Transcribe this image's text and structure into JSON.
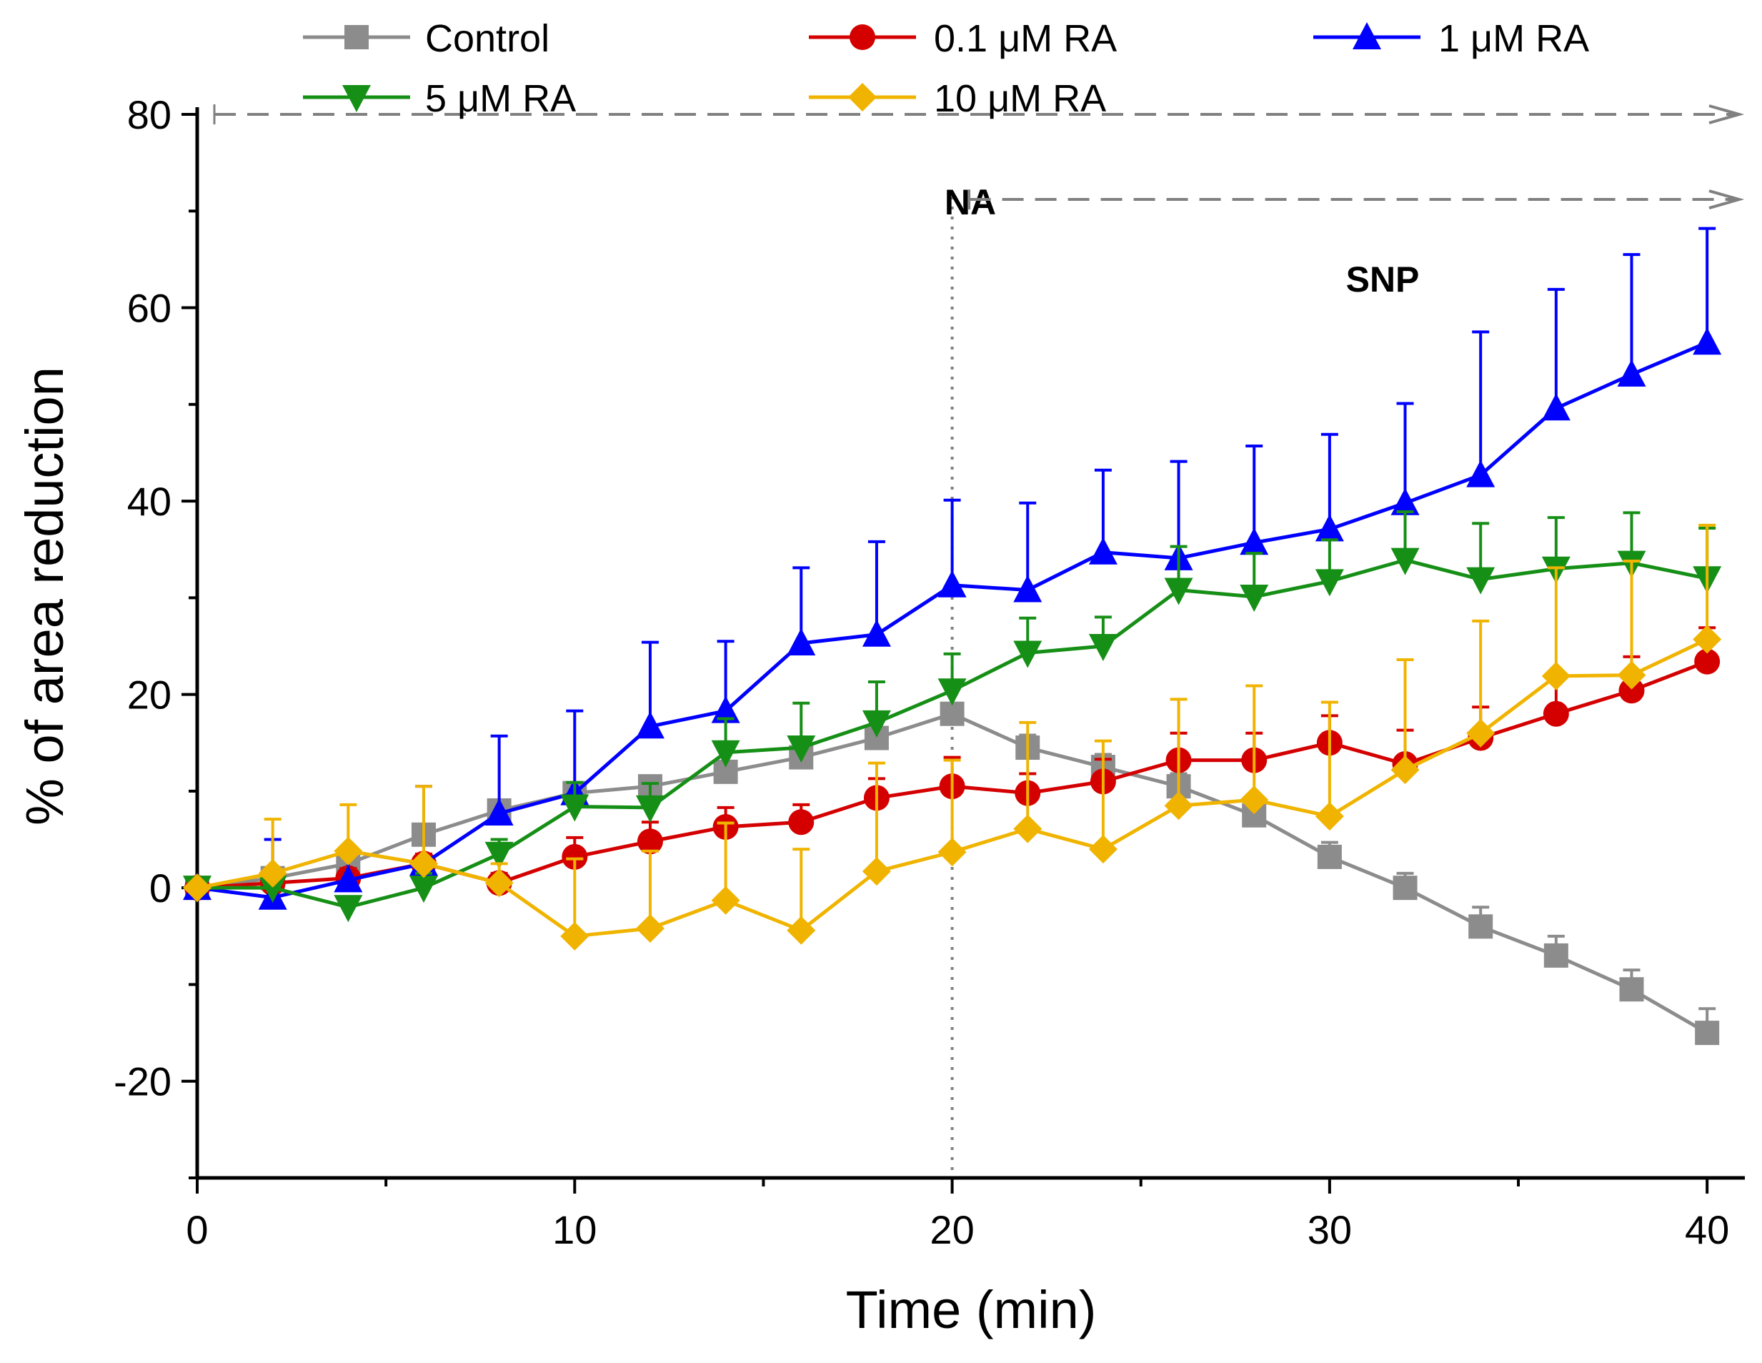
{
  "chart_data": {
    "type": "line",
    "title": "",
    "xlabel": "Time (min)",
    "ylabel": "% of area reduction",
    "xlim": [
      0,
      41
    ],
    "ylim": [
      -30,
      80
    ],
    "xticks": [
      0,
      10,
      20,
      30,
      40
    ],
    "yticks": [
      -20,
      0,
      20,
      40,
      60,
      80
    ],
    "xtick_labels": [
      "0",
      "10",
      "20",
      "30",
      "40"
    ],
    "ytick_labels": [
      "-20",
      "0",
      "20",
      "40",
      "60",
      "80"
    ],
    "grid": false,
    "legend_position": "top",
    "x": [
      0,
      2,
      4,
      6,
      8,
      10,
      12,
      14,
      16,
      18,
      20,
      22,
      24,
      26,
      28,
      30,
      32,
      34,
      36,
      38,
      40
    ],
    "series": [
      {
        "name": "Control",
        "color": "#8c8c8c",
        "marker": "square",
        "values": [
          0,
          1,
          2.5,
          5.5,
          8,
          9.8,
          10.5,
          12,
          13.5,
          15.5,
          18,
          14.5,
          12.5,
          10.5,
          7.5,
          3.2,
          0,
          -4,
          -7,
          -10.5,
          -15
        ],
        "errors": [
          0,
          1,
          1,
          1,
          1,
          1,
          1,
          1,
          1,
          1,
          1,
          1.3,
          1.3,
          1.3,
          1.3,
          1.5,
          1.5,
          2,
          2,
          2,
          2.5
        ]
      },
      {
        "name": "0.1 μM RA",
        "color": "#d40000",
        "marker": "circle",
        "values": [
          0,
          0.5,
          1,
          2.5,
          0.5,
          3.2,
          4.8,
          6.3,
          6.8,
          9.3,
          10.5,
          9.8,
          11,
          13.2,
          13.2,
          15,
          12.8,
          15.5,
          18,
          20.4,
          23.4
        ],
        "errors": [
          0,
          1,
          1,
          1,
          1,
          2,
          2,
          2,
          1.8,
          2,
          3,
          2,
          2.3,
          2.8,
          2.8,
          2.8,
          3.5,
          3.2,
          3.5,
          3.5,
          3.5
        ]
      },
      {
        "name": "1 μM RA",
        "color": "#0000ff",
        "marker": "triangle-up",
        "values": [
          0,
          -1,
          0.8,
          2.5,
          7.7,
          9.8,
          16.7,
          18.3,
          25.3,
          26.2,
          31.3,
          30.8,
          34.7,
          34.1,
          35.7,
          37.1,
          39.8,
          42.7,
          49.6,
          53.1,
          56.4
        ],
        "errors": [
          0,
          6,
          2.5,
          8,
          8,
          8.5,
          8.7,
          7.2,
          7.8,
          9.6,
          8.8,
          9,
          8.5,
          10,
          10,
          9.8,
          10.3,
          14.8,
          12.3,
          12.4,
          11.8
        ]
      },
      {
        "name": "5 μM RA",
        "color": "#168f16",
        "marker": "triangle-down",
        "values": [
          0,
          0,
          -2,
          0,
          3.5,
          8.4,
          8.3,
          14,
          14.5,
          17.1,
          20.4,
          24.3,
          25,
          30.8,
          30.1,
          31.7,
          33.9,
          31.9,
          33,
          33.6,
          32
        ],
        "errors": [
          0,
          2,
          1,
          1.5,
          1.5,
          2.5,
          2.5,
          3.5,
          4.6,
          4.2,
          3.8,
          3.6,
          3,
          4.5,
          4.5,
          4.3,
          5,
          5.8,
          5.3,
          5.2,
          5.2
        ]
      },
      {
        "name": "10 μM RA",
        "color": "#f0b400",
        "marker": "diamond",
        "values": [
          0,
          1.5,
          3.8,
          2.5,
          0.5,
          -5,
          -4.2,
          -1.3,
          -4.4,
          1.7,
          3.7,
          6.1,
          4,
          8.5,
          9.1,
          7.4,
          12.2,
          16,
          21.9,
          22,
          25.7
        ],
        "errors": [
          0,
          5.6,
          4.8,
          8,
          2,
          8,
          8,
          8,
          8.4,
          11.2,
          9.5,
          11,
          11.2,
          11,
          11.8,
          11.8,
          11.4,
          11.6,
          11.2,
          11.8,
          11.8
        ]
      }
    ],
    "annotations": [
      {
        "text": "NA",
        "x_start": 0,
        "x_end": 41,
        "y": 80
      },
      {
        "text": "SNP",
        "x_start": 20,
        "x_end": 41,
        "y": 71.2
      }
    ],
    "vline_x": 20
  }
}
